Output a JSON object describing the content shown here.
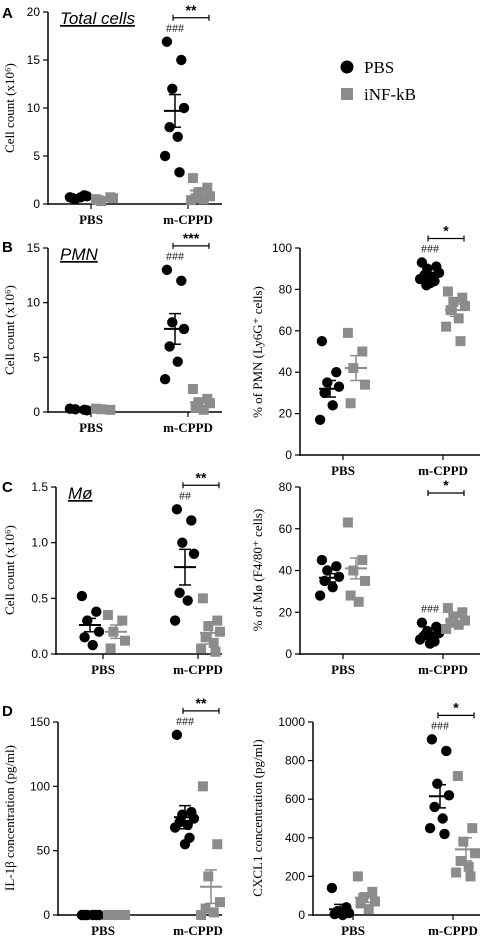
{
  "legend": {
    "entries": [
      {
        "label": "PBS",
        "color": "#000000",
        "marker": "circle"
      },
      {
        "label": "iNF-kB",
        "color": "#8c8c8c",
        "marker": "square"
      }
    ]
  },
  "colors": {
    "pbs": "#000000",
    "inf": "#8c8c8c"
  },
  "chart_data": [
    {
      "type": "scatter",
      "panel": "A",
      "title": "Total cells",
      "ylabel": "Cell count (x10⁶)",
      "categories": [
        "PBS",
        "m-CPPD"
      ],
      "yticks": [
        "0",
        "5",
        "10",
        "15",
        "20"
      ],
      "ylim": [
        0,
        20
      ],
      "series": [
        {
          "name": "PBS",
          "values": [
            [
              0.7,
              0.9,
              0.5,
              0.8,
              0.6,
              0.7
            ],
            [
              16.9,
              15.0,
              12.0,
              10.0,
              8.0,
              7.0,
              5.0,
              3.3
            ]
          ],
          "mean": [
            0.7,
            9.7
          ],
          "sem": [
            0.1,
            1.7
          ]
        },
        {
          "name": "iNF-kB",
          "values": [
            [
              0.5,
              0.7,
              0.3,
              0.6,
              0.4
            ],
            [
              2.7,
              1.7,
              1.2,
              0.8,
              0.6,
              0.5,
              0.4
            ]
          ],
          "mean": [
            0.5,
            1.4
          ],
          "sem": [
            0.1,
            0.3
          ]
        }
      ],
      "hash_marks": {
        "m-CPPD": "###"
      },
      "significance": [
        {
          "between": "m-CPPD",
          "label": "**"
        }
      ]
    },
    {
      "type": "scatter",
      "panel": "B",
      "title": "PMN",
      "ylabel": "Cell count (x10⁶)",
      "categories": [
        "PBS",
        "m-CPPD"
      ],
      "yticks": [
        "0",
        "5",
        "10",
        "15"
      ],
      "ylim": [
        0,
        15
      ],
      "series": [
        {
          "name": "PBS",
          "values": [
            [
              0.3,
              0.2,
              0.25,
              0.15
            ],
            [
              13.0,
              12.0,
              8.2,
              7.6,
              6.0,
              4.6,
              3.0
            ]
          ],
          "mean": [
            0.2,
            7.6
          ],
          "sem": [
            0.1,
            1.4
          ]
        },
        {
          "name": "iNF-kB",
          "values": [
            [
              0.3,
              0.2,
              0.25
            ],
            [
              2.1,
              1.2,
              0.9,
              0.8,
              0.4,
              0.2
            ]
          ],
          "mean": [
            0.2,
            0.9
          ],
          "sem": [
            0.1,
            0.3
          ]
        }
      ],
      "hash_marks": {
        "m-CPPD": "###"
      },
      "significance": [
        {
          "between": "m-CPPD",
          "label": "***"
        }
      ]
    },
    {
      "type": "scatter",
      "panel": "B2",
      "ylabel": "% of PMN (Ly6G⁺ cells)",
      "categories": [
        "PBS",
        "m-CPPD"
      ],
      "yticks": [
        "0",
        "20",
        "40",
        "60",
        "80",
        "100"
      ],
      "ylim": [
        0,
        100
      ],
      "series": [
        {
          "name": "PBS",
          "values": [
            [
              55,
              40,
              35,
              33,
              30,
              24,
              17
            ],
            [
              93,
              91,
              90,
              88,
              87,
              86,
              85,
              84,
              83,
              82
            ]
          ],
          "mean": [
            32,
            87
          ],
          "sem": [
            4,
            1.2
          ]
        },
        {
          "name": "iNF-kB",
          "values": [
            [
              59,
              50,
              42,
              34,
              25
            ],
            [
              79,
              76,
              74,
              72,
              70,
              66,
              62,
              55
            ]
          ],
          "mean": [
            42,
            70
          ],
          "sem": [
            6,
            3
          ]
        }
      ],
      "hash_marks": {
        "m-CPPD": "###"
      },
      "significance": [
        {
          "between": "m-CPPD",
          "label": "*"
        }
      ]
    },
    {
      "type": "scatter",
      "panel": "C",
      "title": "Mø",
      "ylabel": "Cell count (x10⁶)",
      "categories": [
        "PBS",
        "m-CPPD"
      ],
      "yticks": [
        "0.0",
        "0.5",
        "1.0",
        "1.5"
      ],
      "ylim": [
        0,
        1.5
      ],
      "series": [
        {
          "name": "PBS",
          "values": [
            [
              0.52,
              0.38,
              0.3,
              0.2,
              0.15,
              0.08
            ],
            [
              1.3,
              1.2,
              1.0,
              0.9,
              0.55,
              0.48,
              0.3
            ]
          ],
          "mean": [
            0.26,
            0.78
          ],
          "sem": [
            0.06,
            0.16
          ]
        },
        {
          "name": "iNF-kB",
          "values": [
            [
              0.35,
              0.3,
              0.2,
              0.12,
              0.05
            ],
            [
              0.5,
              0.3,
              0.25,
              0.2,
              0.15,
              0.1,
              0.05,
              0.02
            ]
          ],
          "mean": [
            0.2,
            0.19
          ],
          "sem": [
            0.06,
            0.1
          ]
        }
      ],
      "hash_marks": {
        "m-CPPD": "##"
      },
      "significance": [
        {
          "between": "m-CPPD",
          "label": "**"
        }
      ]
    },
    {
      "type": "scatter",
      "panel": "C2",
      "ylabel": "% of Mø (F4/80⁺ cells)",
      "categories": [
        "PBS",
        "m-CPPD"
      ],
      "yticks": [
        "0",
        "20",
        "40",
        "60",
        "80"
      ],
      "ylim": [
        0,
        80
      ],
      "series": [
        {
          "name": "PBS",
          "values": [
            [
              45,
              42,
              40,
              37,
              35,
              32,
              28
            ],
            [
              15,
              13,
              11,
              10,
              9,
              8,
              7,
              6,
              5
            ]
          ],
          "mean": [
            36.5,
            9.5
          ],
          "sem": [
            2,
            1
          ]
        },
        {
          "name": "iNF-kB",
          "values": [
            [
              63,
              45,
              40,
              35,
              28,
              25
            ],
            [
              22,
              20,
              18,
              16,
              15,
              14,
              12
            ]
          ],
          "mean": [
            41,
            16
          ],
          "sem": [
            5,
            1.5
          ]
        }
      ],
      "hash_marks": {
        "m-CPPD": "###"
      },
      "significance": [
        {
          "between": "m-CPPD",
          "label": "*"
        }
      ]
    },
    {
      "type": "scatter",
      "panel": "D",
      "ylabel": "IL-1β concentration (pg/ml)",
      "categories": [
        "PBS",
        "m-CPPD"
      ],
      "yticks": [
        "0",
        "50",
        "100",
        "150"
      ],
      "ylim": [
        0,
        150
      ],
      "series": [
        {
          "name": "PBS",
          "values": [
            [
              0,
              0,
              0,
              0,
              0,
              0
            ],
            [
              140,
              80,
              78,
              75,
              72,
              70,
              68,
              60,
              55
            ]
          ],
          "mean": [
            0,
            76
          ],
          "sem": [
            0,
            9
          ]
        },
        {
          "name": "iNF-kB",
          "values": [
            [
              0,
              0,
              0,
              0,
              0
            ],
            [
              100,
              55,
              30,
              10,
              5,
              2,
              0
            ]
          ],
          "mean": [
            0,
            22
          ],
          "sem": [
            0,
            13
          ]
        }
      ],
      "hash_marks": {
        "m-CPPD": "###"
      },
      "significance": [
        {
          "between": "m-CPPD",
          "label": "**"
        }
      ]
    },
    {
      "type": "scatter",
      "panel": "D2",
      "ylabel": "CXCL1 concentration (pg/ml)",
      "categories": [
        "PBS",
        "m-CPPD"
      ],
      "yticks": [
        "0",
        "200",
        "400",
        "600",
        "800",
        "1000"
      ],
      "ylim": [
        0,
        1000
      ],
      "series": [
        {
          "name": "PBS",
          "values": [
            [
              140,
              40,
              20,
              10,
              5,
              0
            ],
            [
              910,
              850,
              680,
              620,
              560,
              500,
              450,
              420
            ]
          ],
          "mean": [
            30,
            615
          ],
          "sem": [
            25,
            60
          ]
        },
        {
          "name": "iNF-kB",
          "values": [
            [
              200,
              120,
              90,
              70,
              60,
              30
            ],
            [
              720,
              450,
              380,
              320,
              280,
              250,
              220,
              200
            ]
          ],
          "mean": [
            90,
            340
          ],
          "sem": [
            25,
            60
          ]
        }
      ],
      "hash_marks": {
        "m-CPPD": "###"
      },
      "significance": [
        {
          "between": "m-CPPD",
          "label": "*"
        }
      ]
    }
  ]
}
